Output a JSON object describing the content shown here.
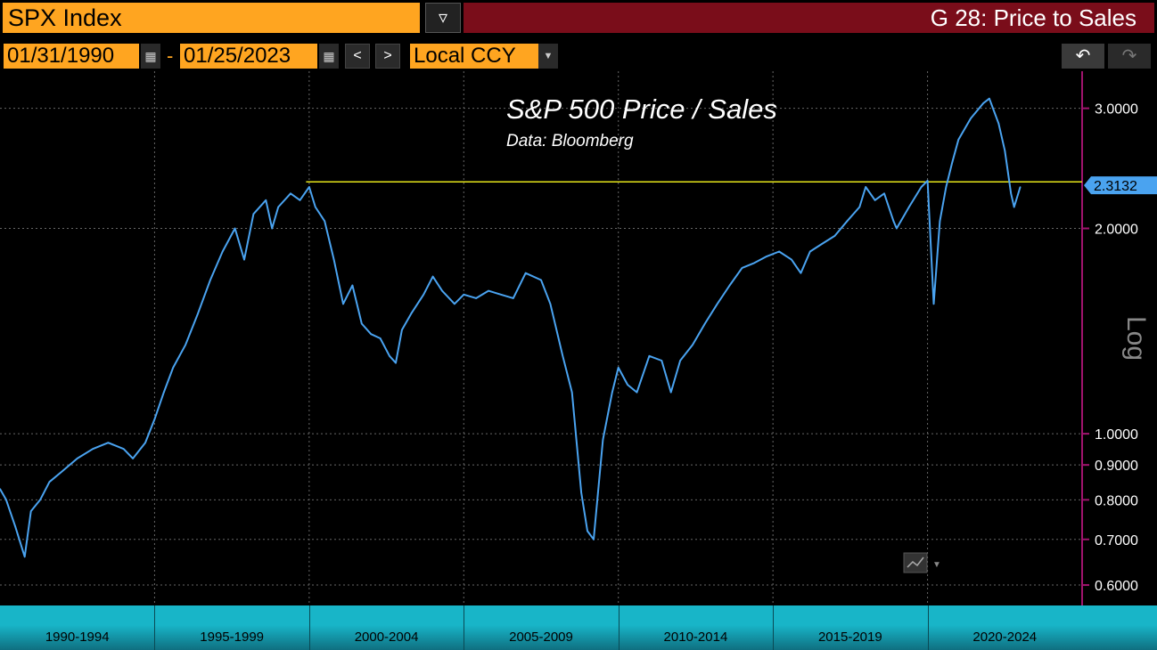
{
  "header": {
    "ticker": "SPX Index",
    "title": "G 28: Price to Sales"
  },
  "toolbar": {
    "start_date": "01/31/1990",
    "end_date": "01/25/2023",
    "separator": "-",
    "currency": "Local CCY",
    "prev_icon": "<",
    "next_icon": ">"
  },
  "chart_data": {
    "type": "line",
    "title": "S&P 500 Price / Sales",
    "subtitle": "Data: Bloomberg",
    "y_axis_label": "Log",
    "y_scale": "log",
    "ylim": [
      0.56,
      3.4
    ],
    "y_ticks": [
      "3.0000",
      "2.0000",
      "1.0000",
      "0.9000",
      "0.8000",
      "0.7000",
      "0.6000"
    ],
    "y_tick_values": [
      3.0,
      2.0,
      1.0,
      0.9,
      0.8,
      0.7,
      0.6
    ],
    "x_periods": [
      "1990-1994",
      "1995-1999",
      "2000-2004",
      "2005-2009",
      "2010-2014",
      "2015-2019",
      "2020-2024"
    ],
    "xlim": [
      1990.0,
      2025.0
    ],
    "last_value_label": "2.3132",
    "last_value": 2.3132,
    "reference_line_value": 2.34,
    "reference_line_start": 1999.9,
    "line_color": "#4aa3f0",
    "reference_color": "#e6e61a",
    "series": [
      {
        "x": [
          1990.0,
          1990.2,
          1990.5,
          1990.8,
          1991.0,
          1991.3,
          1991.6,
          1992.0,
          1992.5,
          1993.0,
          1993.5,
          1994.0,
          1994.3,
          1994.7,
          1995.0,
          1995.3,
          1995.6,
          1996.0,
          1996.4,
          1996.8,
          1997.2,
          1997.6,
          1997.9,
          1998.2,
          1998.6,
          1998.8,
          1999.0,
          1999.4,
          1999.7,
          2000.0,
          2000.2,
          2000.5,
          2000.8,
          2001.1,
          2001.4,
          2001.7,
          2002.0,
          2002.3,
          2002.6,
          2002.8,
          2003.0,
          2003.3,
          2003.7,
          2004.0,
          2004.3,
          2004.7,
          2005.0,
          2005.4,
          2005.8,
          2006.2,
          2006.6,
          2007.0,
          2007.5,
          2007.8,
          2008.2,
          2008.5,
          2008.8,
          2009.0,
          2009.2,
          2009.5,
          2009.8,
          2010.0,
          2010.3,
          2010.6,
          2011.0,
          2011.4,
          2011.7,
          2012.0,
          2012.4,
          2012.8,
          2013.2,
          2013.6,
          2014.0,
          2014.4,
          2014.8,
          2015.2,
          2015.6,
          2015.9,
          2016.2,
          2016.6,
          2017.0,
          2017.4,
          2017.8,
          2018.0,
          2018.3,
          2018.6,
          2018.9,
          2019.0,
          2019.4,
          2019.8,
          2020.0,
          2020.2,
          2020.4,
          2020.6,
          2020.8,
          2021.0,
          2021.4,
          2021.8,
          2022.0,
          2022.3,
          2022.5,
          2022.7,
          2022.8,
          2023.0
        ],
        "y": [
          0.83,
          0.8,
          0.73,
          0.66,
          0.77,
          0.8,
          0.85,
          0.88,
          0.92,
          0.95,
          0.97,
          0.95,
          0.92,
          0.97,
          1.05,
          1.15,
          1.25,
          1.35,
          1.5,
          1.68,
          1.85,
          2.0,
          1.8,
          2.1,
          2.2,
          2.0,
          2.15,
          2.25,
          2.2,
          2.3,
          2.15,
          2.05,
          1.8,
          1.55,
          1.65,
          1.45,
          1.4,
          1.38,
          1.3,
          1.27,
          1.42,
          1.5,
          1.6,
          1.7,
          1.62,
          1.55,
          1.6,
          1.58,
          1.62,
          1.6,
          1.58,
          1.72,
          1.68,
          1.55,
          1.3,
          1.15,
          0.82,
          0.72,
          0.7,
          0.98,
          1.15,
          1.25,
          1.18,
          1.15,
          1.3,
          1.28,
          1.15,
          1.28,
          1.35,
          1.45,
          1.55,
          1.65,
          1.75,
          1.78,
          1.82,
          1.85,
          1.8,
          1.72,
          1.85,
          1.9,
          1.95,
          2.05,
          2.15,
          2.3,
          2.2,
          2.25,
          2.05,
          2.0,
          2.15,
          2.3,
          2.35,
          1.55,
          2.05,
          2.3,
          2.5,
          2.7,
          2.9,
          3.05,
          3.1,
          2.85,
          2.6,
          2.25,
          2.15,
          2.3
        ]
      }
    ]
  }
}
